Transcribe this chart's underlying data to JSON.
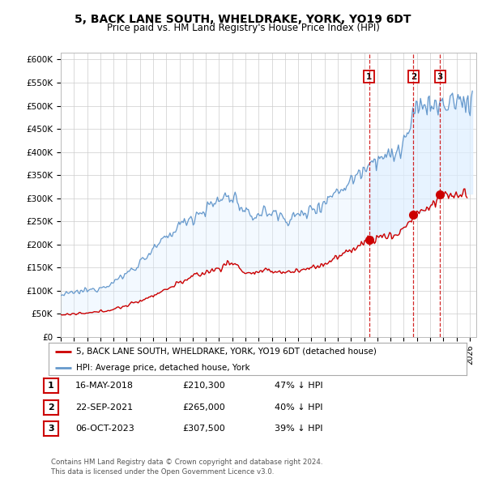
{
  "title": "5, BACK LANE SOUTH, WHELDRAKE, YORK, YO19 6DT",
  "subtitle": "Price paid vs. HM Land Registry's House Price Index (HPI)",
  "title_fontsize": 10,
  "subtitle_fontsize": 8.5,
  "ylabel_ticks": [
    "£0",
    "£50K",
    "£100K",
    "£150K",
    "£200K",
    "£250K",
    "£300K",
    "£350K",
    "£400K",
    "£450K",
    "£500K",
    "£550K",
    "£600K"
  ],
  "ytick_values": [
    0,
    50000,
    100000,
    150000,
    200000,
    250000,
    300000,
    350000,
    400000,
    450000,
    500000,
    550000,
    600000
  ],
  "ylim": [
    0,
    615000
  ],
  "xlim_start": 1995.0,
  "xlim_end": 2026.5,
  "red_line_color": "#cc0000",
  "blue_line_color": "#6699cc",
  "shade_color": "#ddeeff",
  "vline_color": "#cc0000",
  "marker_color": "#cc0000",
  "sales": [
    {
      "date_num": 2018.37,
      "price": 210300,
      "label": "1"
    },
    {
      "date_num": 2021.73,
      "price": 265000,
      "label": "2"
    },
    {
      "date_num": 2023.76,
      "price": 307500,
      "label": "3"
    }
  ],
  "sale_labels_text": [
    {
      "label": "1",
      "date": "16-MAY-2018",
      "price": "£210,300",
      "hpi_pct": "47% ↓ HPI"
    },
    {
      "label": "2",
      "date": "22-SEP-2021",
      "price": "£265,000",
      "hpi_pct": "40% ↓ HPI"
    },
    {
      "label": "3",
      "date": "06-OCT-2023",
      "price": "£307,500",
      "hpi_pct": "39% ↓ HPI"
    }
  ],
  "legend_red_label": "5, BACK LANE SOUTH, WHELDRAKE, YORK, YO19 6DT (detached house)",
  "legend_blue_label": "HPI: Average price, detached house, York",
  "footer_line1": "Contains HM Land Registry data © Crown copyright and database right 2024.",
  "footer_line2": "This data is licensed under the Open Government Licence v3.0.",
  "background_color": "#ffffff",
  "grid_color": "#cccccc",
  "plot_bg_color": "#ffffff"
}
